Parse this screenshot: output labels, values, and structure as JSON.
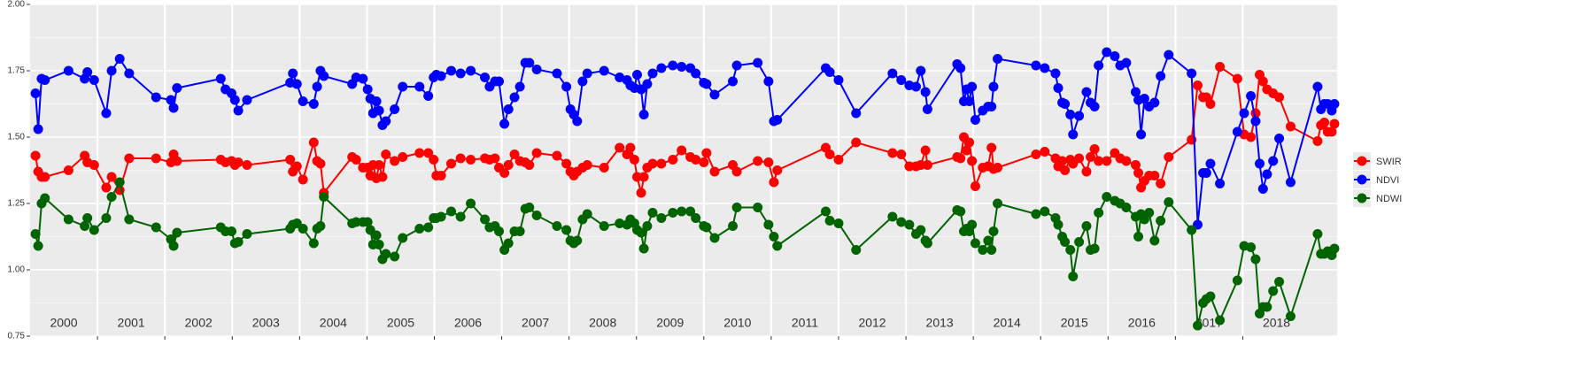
{
  "chart_data": {
    "type": "line",
    "x": [
      2000.08,
      2000.12,
      2000.17,
      2000.22,
      2000.57,
      2000.81,
      2000.85,
      2000.95,
      2001.13,
      2001.21,
      2001.33,
      2001.47,
      2001.87,
      2002.09,
      2002.13,
      2002.18,
      2002.83,
      2002.9,
      2002.99,
      2003.04,
      2003.09,
      2003.22,
      2003.86,
      2003.9,
      2003.96,
      2004.05,
      2004.21,
      2004.26,
      2004.31,
      2004.36,
      2004.78,
      2004.84,
      2004.94,
      2005.01,
      2005.05,
      2005.09,
      2005.14,
      2005.18,
      2005.23,
      2005.28,
      2005.41,
      2005.53,
      2005.78,
      2005.91,
      2005.99,
      2006.03,
      2006.1,
      2006.25,
      2006.39,
      2006.54,
      2006.75,
      2006.82,
      2006.9,
      2006.96,
      2007.04,
      2007.1,
      2007.19,
      2007.27,
      2007.35,
      2007.41,
      2007.52,
      2007.82,
      2007.96,
      2008.02,
      2008.07,
      2008.12,
      2008.2,
      2008.27,
      2008.52,
      2008.75,
      2008.86,
      2008.91,
      2008.97,
      2009.01,
      2009.07,
      2009.11,
      2009.16,
      2009.24,
      2009.37,
      2009.54,
      2009.67,
      2009.8,
      2009.88,
      2010,
      2010.04,
      2010.16,
      2010.43,
      2010.49,
      2010.8,
      2010.96,
      2011.04,
      2011.09,
      2011.81,
      2011.87,
      2012,
      2012.26,
      2012.8,
      2012.93,
      2013.05,
      2013.15,
      2013.22,
      2013.29,
      2013.32,
      2013.76,
      2013.81,
      2013.86,
      2013.9,
      2013.94,
      2013.98,
      2014.03,
      2014.14,
      2014.22,
      2014.27,
      2014.3,
      2014.36,
      2014.93,
      2015.06,
      2015.22,
      2015.26,
      2015.32,
      2015.36,
      2015.44,
      2015.48,
      2015.57,
      2015.68,
      2015.74,
      2015.8,
      2015.86,
      2015.98,
      2016.1,
      2016.18,
      2016.27,
      2016.41,
      2016.45,
      2016.49,
      2016.54,
      2016.61,
      2016.69,
      2016.78,
      2016.9,
      2017.24,
      2017.33,
      2017.41,
      2017.46,
      2017.52,
      2017.66,
      2017.92,
      2018.02,
      2018.12,
      2018.19,
      2018.25,
      2018.3,
      2018.36,
      2018.45,
      2018.54,
      2018.71,
      2019.11,
      2019.16,
      2019.21,
      2019.26,
      2019.32,
      2019.36
    ],
    "series": [
      {
        "name": "SWIR",
        "color": "#ff0000",
        "values": [
          1.43,
          1.37,
          1.35,
          1.35,
          1.375,
          1.43,
          1.405,
          1.395,
          1.31,
          1.35,
          1.3,
          1.42,
          1.42,
          1.405,
          1.435,
          1.41,
          1.415,
          1.405,
          1.41,
          1.395,
          1.405,
          1.395,
          1.415,
          1.37,
          1.39,
          1.34,
          1.48,
          1.41,
          1.4,
          1.29,
          1.425,
          1.415,
          1.385,
          1.385,
          1.355,
          1.395,
          1.345,
          1.395,
          1.35,
          1.435,
          1.41,
          1.425,
          1.44,
          1.44,
          1.415,
          1.355,
          1.355,
          1.4,
          1.42,
          1.415,
          1.42,
          1.415,
          1.42,
          1.385,
          1.365,
          1.395,
          1.435,
          1.41,
          1.405,
          1.395,
          1.44,
          1.43,
          1.4,
          1.37,
          1.355,
          1.37,
          1.385,
          1.395,
          1.385,
          1.46,
          1.435,
          1.46,
          1.415,
          1.35,
          1.29,
          1.35,
          1.385,
          1.4,
          1.4,
          1.415,
          1.45,
          1.425,
          1.415,
          1.405,
          1.44,
          1.37,
          1.395,
          1.37,
          1.41,
          1.405,
          1.33,
          1.375,
          1.46,
          1.435,
          1.415,
          1.48,
          1.44,
          1.435,
          1.39,
          1.39,
          1.395,
          1.45,
          1.395,
          1.425,
          1.42,
          1.5,
          1.45,
          1.48,
          1.41,
          1.315,
          1.385,
          1.39,
          1.46,
          1.38,
          1.385,
          1.435,
          1.445,
          1.42,
          1.39,
          1.41,
          1.375,
          1.415,
          1.4,
          1.42,
          1.37,
          1.425,
          1.455,
          1.41,
          1.41,
          1.44,
          1.42,
          1.41,
          1.395,
          1.365,
          1.31,
          1.335,
          1.355,
          1.355,
          1.325,
          1.425,
          1.49,
          1.695,
          1.65,
          1.65,
          1.625,
          1.765,
          1.72,
          1.51,
          1.5,
          1.59,
          1.735,
          1.71,
          1.68,
          1.665,
          1.65,
          1.54,
          1.485,
          1.545,
          1.555,
          1.52,
          1.52,
          1.55
        ]
      },
      {
        "name": "NDVI",
        "color": "#0000ff",
        "values": [
          1.665,
          1.53,
          1.72,
          1.715,
          1.75,
          1.72,
          1.745,
          1.715,
          1.59,
          1.75,
          1.795,
          1.74,
          1.65,
          1.64,
          1.61,
          1.685,
          1.72,
          1.68,
          1.665,
          1.64,
          1.6,
          1.64,
          1.705,
          1.74,
          1.7,
          1.635,
          1.625,
          1.69,
          1.75,
          1.73,
          1.7,
          1.725,
          1.72,
          1.68,
          1.645,
          1.59,
          1.635,
          1.6,
          1.545,
          1.56,
          1.605,
          1.69,
          1.69,
          1.655,
          1.725,
          1.735,
          1.73,
          1.75,
          1.74,
          1.75,
          1.725,
          1.69,
          1.71,
          1.71,
          1.55,
          1.605,
          1.65,
          1.69,
          1.78,
          1.78,
          1.755,
          1.74,
          1.69,
          1.605,
          1.585,
          1.56,
          1.71,
          1.74,
          1.75,
          1.725,
          1.715,
          1.695,
          1.685,
          1.735,
          1.68,
          1.585,
          1.7,
          1.74,
          1.76,
          1.77,
          1.765,
          1.76,
          1.74,
          1.705,
          1.7,
          1.66,
          1.71,
          1.77,
          1.78,
          1.71,
          1.56,
          1.565,
          1.76,
          1.745,
          1.715,
          1.59,
          1.74,
          1.715,
          1.695,
          1.69,
          1.75,
          1.67,
          1.605,
          1.775,
          1.76,
          1.635,
          1.68,
          1.635,
          1.69,
          1.565,
          1.6,
          1.615,
          1.615,
          1.69,
          1.795,
          1.77,
          1.76,
          1.74,
          1.685,
          1.63,
          1.625,
          1.585,
          1.51,
          1.58,
          1.67,
          1.63,
          1.615,
          1.77,
          1.82,
          1.805,
          1.77,
          1.78,
          1.67,
          1.64,
          1.51,
          1.645,
          1.615,
          1.63,
          1.73,
          1.81,
          1.74,
          1.17,
          1.365,
          1.365,
          1.4,
          1.325,
          1.52,
          1.59,
          1.655,
          1.56,
          1.4,
          1.305,
          1.36,
          1.41,
          1.495,
          1.33,
          1.69,
          1.605,
          1.625,
          1.625,
          1.6,
          1.625
        ]
      },
      {
        "name": "NDWI",
        "color": "#006400",
        "values": [
          1.135,
          1.09,
          1.25,
          1.27,
          1.19,
          1.165,
          1.195,
          1.15,
          1.195,
          1.275,
          1.33,
          1.19,
          1.16,
          1.115,
          1.09,
          1.14,
          1.16,
          1.145,
          1.145,
          1.1,
          1.105,
          1.135,
          1.155,
          1.17,
          1.175,
          1.155,
          1.1,
          1.155,
          1.165,
          1.275,
          1.175,
          1.18,
          1.18,
          1.18,
          1.15,
          1.095,
          1.13,
          1.095,
          1.04,
          1.06,
          1.05,
          1.12,
          1.155,
          1.16,
          1.195,
          1.195,
          1.2,
          1.22,
          1.2,
          1.25,
          1.19,
          1.16,
          1.165,
          1.145,
          1.075,
          1.1,
          1.145,
          1.145,
          1.23,
          1.235,
          1.205,
          1.165,
          1.15,
          1.11,
          1.1,
          1.11,
          1.19,
          1.21,
          1.165,
          1.175,
          1.17,
          1.19,
          1.175,
          1.15,
          1.14,
          1.08,
          1.165,
          1.215,
          1.195,
          1.215,
          1.22,
          1.22,
          1.195,
          1.165,
          1.16,
          1.12,
          1.165,
          1.235,
          1.235,
          1.17,
          1.125,
          1.09,
          1.22,
          1.185,
          1.175,
          1.075,
          1.2,
          1.18,
          1.17,
          1.135,
          1.15,
          1.11,
          1.1,
          1.225,
          1.22,
          1.145,
          1.155,
          1.145,
          1.17,
          1.1,
          1.075,
          1.11,
          1.075,
          1.145,
          1.25,
          1.21,
          1.22,
          1.195,
          1.17,
          1.125,
          1.105,
          1.075,
          0.975,
          1.105,
          1.165,
          1.075,
          1.08,
          1.215,
          1.275,
          1.26,
          1.25,
          1.235,
          1.2,
          1.125,
          1.21,
          1.19,
          1.215,
          1.11,
          1.185,
          1.255,
          1.15,
          0.79,
          0.875,
          0.89,
          0.9,
          0.81,
          0.96,
          1.09,
          1.085,
          1.04,
          0.835,
          0.86,
          0.86,
          0.92,
          0.955,
          0.825,
          1.135,
          1.06,
          1.06,
          1.07,
          1.055,
          1.08
        ]
      }
    ],
    "xlim": [
      2000,
      2019.4
    ],
    "xticks": [
      {
        "value": 2000.5,
        "label": "2000"
      },
      {
        "value": 2001.5,
        "label": "2001"
      },
      {
        "value": 2002.5,
        "label": "2002"
      },
      {
        "value": 2003.5,
        "label": "2003"
      },
      {
        "value": 2004.5,
        "label": "2004"
      },
      {
        "value": 2005.5,
        "label": "2005"
      },
      {
        "value": 2006.5,
        "label": "2006"
      },
      {
        "value": 2007.5,
        "label": "2007"
      },
      {
        "value": 2008.5,
        "label": "2008"
      },
      {
        "value": 2009.5,
        "label": "2009"
      },
      {
        "value": 2010.5,
        "label": "2010"
      },
      {
        "value": 2011.5,
        "label": "2011"
      },
      {
        "value": 2012.5,
        "label": "2012"
      },
      {
        "value": 2013.5,
        "label": "2013"
      },
      {
        "value": 2014.5,
        "label": "2014"
      },
      {
        "value": 2015.5,
        "label": "2015"
      },
      {
        "value": 2016.5,
        "label": "2016"
      },
      {
        "value": 2017.5,
        "label": "2017"
      },
      {
        "value": 2018.5,
        "label": "2018"
      }
    ],
    "xgrid": [
      2001,
      2002,
      2003,
      2004,
      2005,
      2006,
      2007,
      2008,
      2009,
      2010,
      2011,
      2012,
      2013,
      2014,
      2015,
      2016,
      2017,
      2018
    ],
    "ylim": [
      0.75,
      2.0
    ],
    "yticks": [
      {
        "value": 0.75,
        "label": "0.75"
      },
      {
        "value": 1,
        "label": "1.00"
      },
      {
        "value": 1.25,
        "label": "1.25"
      },
      {
        "value": 1.5,
        "label": "1.50"
      },
      {
        "value": 1.75,
        "label": "1.75"
      },
      {
        "value": 2,
        "label": "2.00"
      }
    ],
    "yminor": [
      0.875,
      1.125,
      1.375,
      1.625,
      1.875
    ],
    "grid": true,
    "legend": "right"
  }
}
